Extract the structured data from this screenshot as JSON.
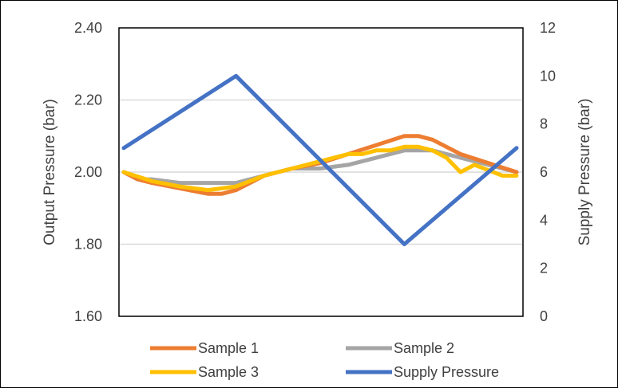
{
  "chart_data": {
    "type": "line",
    "title": "",
    "xlabel": "",
    "ylabel": "Output Pressure (bar)",
    "y2label": "Supply Pressure (bar)",
    "ylim": [
      1.6,
      2.4
    ],
    "y2lim": [
      0,
      12
    ],
    "yticks": [
      "1.60",
      "1.80",
      "2.00",
      "2.20",
      "2.40"
    ],
    "y2ticks": [
      "0",
      "2",
      "4",
      "6",
      "8",
      "10",
      "12"
    ],
    "grid": true,
    "legend_position": "bottom",
    "series": [
      {
        "name": "Sample 1",
        "axis": "left",
        "color": "#ED7D31",
        "x": [
          0,
          0.5,
          1,
          2,
          3,
          3.5,
          4,
          5,
          6,
          7,
          8,
          9,
          10,
          10.5,
          11,
          12,
          13,
          14
        ],
        "values": [
          2.0,
          1.98,
          1.97,
          1.955,
          1.94,
          1.94,
          1.95,
          1.99,
          2.01,
          2.025,
          2.05,
          2.075,
          2.1,
          2.1,
          2.09,
          2.05,
          2.025,
          2.0
        ]
      },
      {
        "name": "Sample 2",
        "axis": "left",
        "color": "#A5A5A5",
        "x": [
          0,
          0.5,
          1,
          2,
          3,
          4,
          5,
          6,
          7,
          8,
          9,
          10,
          11,
          12,
          13,
          14
        ],
        "values": [
          2.0,
          1.98,
          1.98,
          1.97,
          1.97,
          1.97,
          1.99,
          2.01,
          2.01,
          2.02,
          2.04,
          2.06,
          2.06,
          2.04,
          2.02,
          2.0
        ]
      },
      {
        "name": "Sample 3",
        "axis": "left",
        "color": "#FFC000",
        "x": [
          0,
          1,
          2,
          3,
          4,
          5,
          6,
          7,
          8,
          8.5,
          9,
          9.5,
          10,
          10.5,
          11,
          11.5,
          12,
          12.5,
          13,
          13.5,
          14
        ],
        "values": [
          2.0,
          1.975,
          1.96,
          1.95,
          1.96,
          1.99,
          2.01,
          2.03,
          2.05,
          2.05,
          2.06,
          2.06,
          2.07,
          2.07,
          2.06,
          2.04,
          2.0,
          2.02,
          2.005,
          1.99,
          1.99
        ]
      },
      {
        "name": "Supply Pressure",
        "axis": "right",
        "color": "#4472C4",
        "x": [
          0,
          4,
          10,
          14
        ],
        "values": [
          7,
          10,
          3,
          7
        ]
      }
    ]
  }
}
